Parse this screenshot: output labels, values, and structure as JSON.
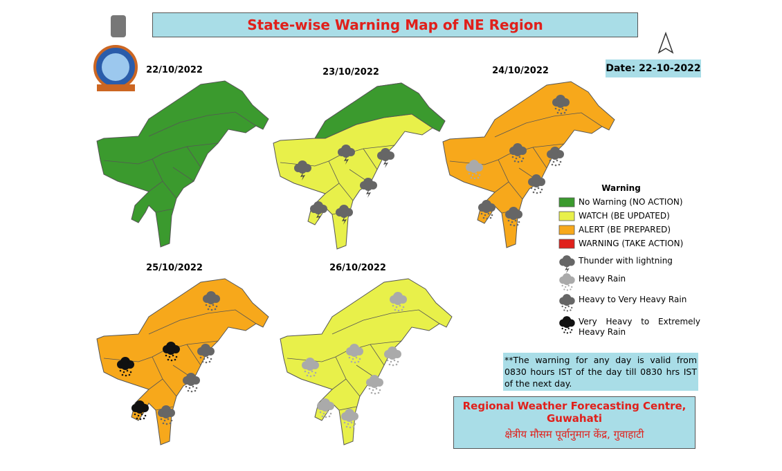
{
  "title": "State-wise Warning Map of NE Region",
  "date": "Date: 22-10-2022",
  "maps": [
    {
      "date": "22/10/2022",
      "color": "#3b9a2e"
    },
    {
      "date": "23/10/2022",
      "color": "#e8f04a",
      "north_color": "#3b9a2e"
    },
    {
      "date": "24/10/2022",
      "color": "#f7a81b"
    },
    {
      "date": "25/10/2022",
      "color": "#f7a81b"
    },
    {
      "date": "26/10/2022",
      "color": "#e8f04a"
    }
  ],
  "legend": {
    "title": "Warning",
    "levels": [
      {
        "label": "No Warning (NO ACTION)",
        "color": "#3b9a2e"
      },
      {
        "label": "WATCH (BE UPDATED)",
        "color": "#e8f04a"
      },
      {
        "label": "ALERT (BE PREPARED)",
        "color": "#f7a81b"
      },
      {
        "label": "WARNING (TAKE ACTION)",
        "color": "#e0201b"
      }
    ],
    "icons": [
      {
        "label": "Thunder with lightning"
      },
      {
        "label": "Heavy Rain"
      },
      {
        "label": "Heavy to Very Heavy Rain"
      },
      {
        "label": "Very Heavy to Extremely Heavy Rain"
      }
    ]
  },
  "note": "**The warning for any day is valid from 0830 hours IST of the day till 0830 hrs IST of the next day.",
  "footer": [
    "Regional Weather Forecasting Centre, Guwahati",
    "क्षेत्रीय मौसम पूर्वानुमान केंद्र, गुवाहाटी"
  ]
}
